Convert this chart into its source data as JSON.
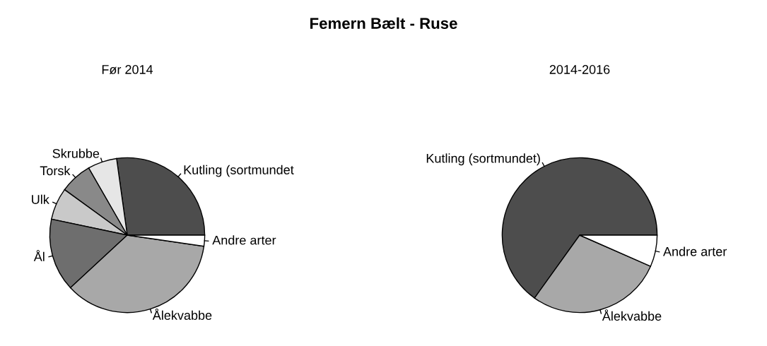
{
  "chart_data": [
    {
      "type": "pie",
      "title": "Femern Bælt - Ruse",
      "subtitle": "Før 2014",
      "categories": [
        "Kutling (sortmundet",
        "Skrubbe",
        "Torsk",
        "Ulk",
        "Ål",
        "Ålekvabbe",
        "Andre arter"
      ],
      "values": [
        27.2,
        6.1,
        6.7,
        6.7,
        15.2,
        35.8,
        2.3
      ],
      "colors": [
        "#4d4d4d",
        "#e6e6e6",
        "#898989",
        "#c9c9c9",
        "#6e6e6e",
        "#a8a8a8",
        "#ffffff"
      ]
    },
    {
      "type": "pie",
      "subtitle": "2014-2016",
      "categories": [
        "Kutling (sortmundet)",
        "Ålekvabbe",
        "Andre arter"
      ],
      "values": [
        65.1,
        28.3,
        6.6
      ],
      "colors": [
        "#4d4d4d",
        "#a8a8a8",
        "#ffffff"
      ]
    }
  ]
}
